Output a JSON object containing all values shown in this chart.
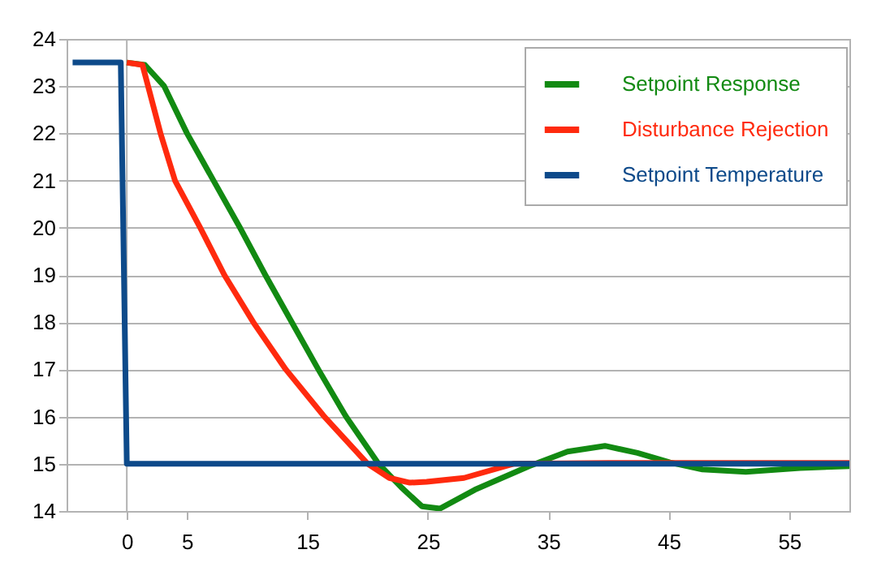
{
  "chart_data": {
    "type": "line",
    "xlim": [
      -5,
      60
    ],
    "xticks": [
      0,
      5,
      15,
      25,
      35,
      45,
      55
    ],
    "ylim": [
      14,
      24
    ],
    "yticks": [
      14,
      15,
      16,
      17,
      18,
      19,
      20,
      21,
      22,
      23,
      24
    ],
    "grid": "y",
    "legend": "top right",
    "line_style": "solid",
    "marker": "none",
    "ref_lines": [
      {
        "axis": "x",
        "value": 0,
        "color": "#b3b3b3"
      }
    ],
    "series": [
      {
        "name": "Setpoint Response",
        "color": "#128a12",
        "x": [
          0,
          1.5,
          3.1,
          5,
          7.2,
          9.4,
          11.5,
          13.7,
          15.9,
          18.2,
          20.9,
          22.8,
          24.5,
          26,
          28.9,
          33.4,
          36.6,
          39.7,
          42.4,
          45.1,
          47.8,
          51.4,
          55.9,
          60
        ],
        "values": [
          23.5,
          23.45,
          23,
          22,
          21,
          20,
          19,
          18,
          17,
          16,
          15,
          14.5,
          14.1,
          14.05,
          14.45,
          14.95,
          15.26,
          15.38,
          15.23,
          15.03,
          14.88,
          14.83,
          14.91,
          14.95
        ]
      },
      {
        "name": "Disturbance Rejection",
        "color": "#ff2a0e",
        "x": [
          0,
          1.3,
          2.8,
          4,
          6.1,
          8.1,
          10.5,
          13.2,
          16.4,
          20,
          21.8,
          23.5,
          24.9,
          28,
          32.1,
          40,
          50,
          60
        ],
        "values": [
          23.5,
          23.45,
          22,
          21,
          20,
          19,
          18,
          17,
          16,
          15,
          14.7,
          14.6,
          14.62,
          14.7,
          15,
          15.02,
          15.02,
          15.02
        ]
      },
      {
        "name": "Setpoint Temperature",
        "color": "#0d4a8a",
        "x": [
          -4.5,
          -0.5,
          0,
          60
        ],
        "values": [
          23.5,
          23.5,
          15,
          15
        ]
      }
    ]
  }
}
